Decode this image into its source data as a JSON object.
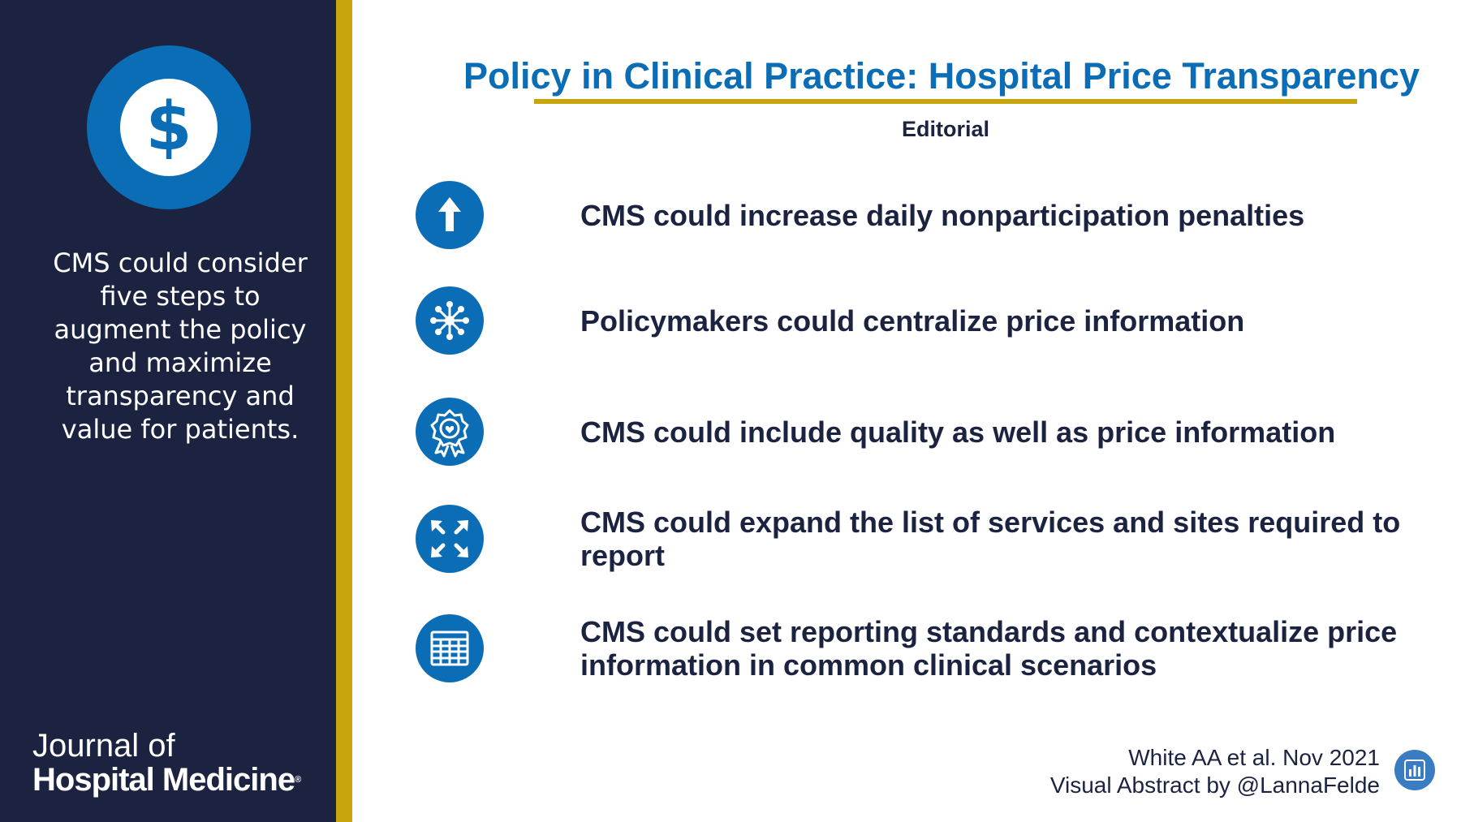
{
  "sidebar": {
    "icon": "dollar-icon",
    "dollar_symbol": "$",
    "summary_lines": [
      "CMS could consider",
      "five steps to",
      "augment the policy",
      "and maximize",
      "transparency and",
      "value for patients."
    ],
    "journal_line1": "Journal of",
    "journal_line2": "Hospital Medicine"
  },
  "header": {
    "title": "Policy in Clinical Practice: Hospital Price Transparency",
    "subtitle": "Editorial"
  },
  "items": [
    {
      "icon": "arrow-up-icon",
      "text": "CMS could increase daily nonparticipation penalties"
    },
    {
      "icon": "network-hub-icon",
      "text": "Policymakers could centralize price information"
    },
    {
      "icon": "award-ribbon-icon",
      "text": "CMS could include quality as well as price information"
    },
    {
      "icon": "expand-arrows-icon",
      "text": "CMS could expand the list of services and sites required to report"
    },
    {
      "icon": "table-grid-icon",
      "text": "CMS could set reporting standards and contextualize price information in common clinical scenarios"
    }
  ],
  "footer": {
    "citation": "White AA et al. Nov 2021",
    "credit": "Visual Abstract by @LannaFelde",
    "logo_icon": "bar-chart-icon"
  },
  "colors": {
    "navy": "#1b2340",
    "blue": "#0a6db5",
    "gold": "#c9a50d"
  }
}
